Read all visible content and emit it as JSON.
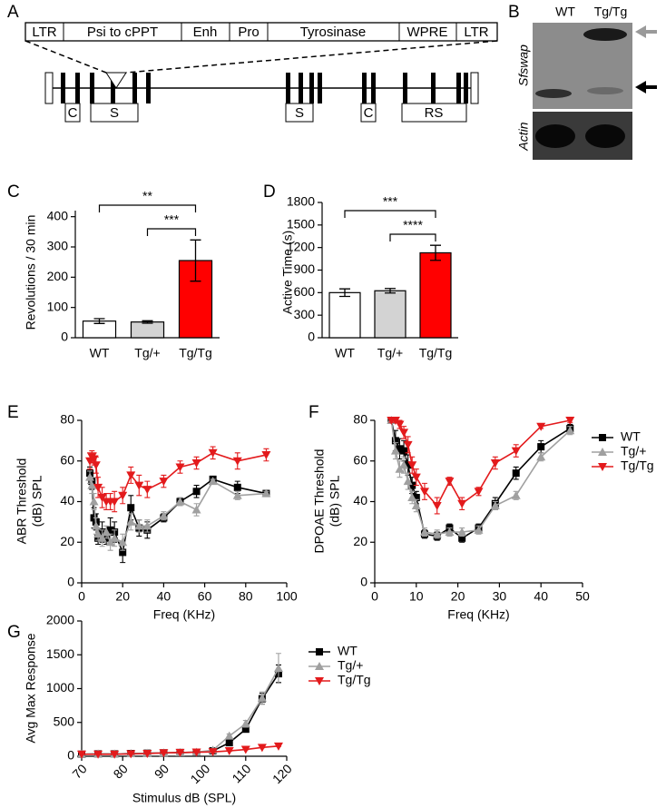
{
  "panel_a": {
    "label": "A",
    "construct": [
      "LTR",
      "Psi to cPPT",
      "Enh",
      "Pro",
      "Tyrosinase",
      "WPRE",
      "LTR"
    ],
    "domains": [
      "C",
      "S",
      "S",
      "C",
      "RS"
    ]
  },
  "panel_b": {
    "label": "B",
    "lanes": [
      "WT",
      "Tg/Tg"
    ],
    "rows": [
      "Sfswap",
      "Actin"
    ]
  },
  "chart_data": [
    {
      "type": "bar",
      "label": "C",
      "ylabel": "Revolutions / 30 min",
      "categories": [
        "WT",
        "Tg/+",
        "Tg/Tg"
      ],
      "values": [
        55,
        52,
        255
      ],
      "errors": [
        8,
        4,
        68
      ],
      "colors": [
        "#ffffff",
        "#d3d3d3",
        "#ff0000"
      ],
      "ylim": [
        0,
        420
      ],
      "yticks": [
        0,
        100,
        200,
        300,
        400
      ],
      "significance": [
        {
          "label": "**",
          "groups": [
            "WT",
            "Tg/Tg"
          ]
        },
        {
          "label": "***",
          "groups": [
            "Tg/+",
            "Tg/Tg"
          ]
        }
      ]
    },
    {
      "type": "bar",
      "label": "D",
      "ylabel": "Active Time  (s)",
      "categories": [
        "WT",
        "Tg/+",
        "Tg/Tg"
      ],
      "values": [
        600,
        625,
        1130
      ],
      "errors": [
        50,
        30,
        100
      ],
      "colors": [
        "#ffffff",
        "#d3d3d3",
        "#ff0000"
      ],
      "ylim": [
        0,
        1800
      ],
      "yticks": [
        0,
        300,
        600,
        900,
        1200,
        1500,
        1800
      ],
      "significance": [
        {
          "label": "***",
          "groups": [
            "WT",
            "Tg/Tg"
          ]
        },
        {
          "label": "****",
          "groups": [
            "Tg/+",
            "Tg/Tg"
          ]
        }
      ]
    },
    {
      "type": "line",
      "label": "E",
      "ylabel": [
        "ABR Threshold",
        "(dB) SPL"
      ],
      "xlabel": "Freq (KHz)",
      "x": [
        4,
        5,
        6,
        7,
        8,
        10,
        12,
        14,
        16,
        20,
        24,
        28,
        32,
        40,
        48,
        56,
        64,
        76,
        90
      ],
      "xlim": [
        0,
        100
      ],
      "xticks": [
        0,
        20,
        40,
        60,
        80,
        100
      ],
      "ylim": [
        0,
        80
      ],
      "yticks": [
        0,
        20,
        40,
        60,
        80
      ],
      "series": [
        {
          "name": "WT",
          "color": "#000000",
          "marker": "square",
          "values": [
            54,
            50,
            32,
            30,
            22,
            25,
            22,
            26,
            25,
            15,
            37,
            27,
            26,
            32,
            40,
            45,
            51,
            47,
            44
          ],
          "errors": [
            3,
            4,
            5,
            4,
            3,
            5,
            3,
            6,
            5,
            5,
            6,
            4,
            4,
            2,
            2,
            3,
            1,
            3,
            1
          ]
        },
        {
          "name": "Tg/+",
          "color": "#a0a0a0",
          "marker": "triangle-up",
          "values": [
            52,
            48,
            40,
            28,
            24,
            22,
            25,
            20,
            22,
            20,
            30,
            28,
            28,
            33,
            40,
            36,
            50,
            43,
            44
          ],
          "errors": [
            3,
            4,
            4,
            4,
            3,
            4,
            3,
            4,
            4,
            4,
            4,
            3,
            3,
            2,
            2,
            3,
            1,
            2,
            1
          ]
        },
        {
          "name": "Tg/Tg",
          "color": "#e31a1c",
          "marker": "triangle-down",
          "values": [
            60,
            62,
            61,
            58,
            47,
            42,
            40,
            40,
            40,
            43,
            53,
            48,
            46,
            50,
            57,
            59,
            64,
            60,
            63
          ],
          "errors": [
            4,
            3,
            3,
            4,
            5,
            5,
            4,
            4,
            5,
            4,
            4,
            5,
            4,
            3,
            3,
            3,
            3,
            4,
            3
          ]
        }
      ]
    },
    {
      "type": "line",
      "label": "F",
      "ylabel": [
        "DPOAE Threshold",
        "(dB) SPL"
      ],
      "xlabel": "Freq (KHz)",
      "legend": "outside-right",
      "x": [
        4,
        5,
        6,
        7,
        8,
        9,
        10,
        12,
        15,
        18,
        21,
        25,
        29,
        34,
        40,
        47
      ],
      "xlim": [
        0,
        50
      ],
      "xticks": [
        0,
        10,
        20,
        30,
        40,
        50
      ],
      "ylim": [
        0,
        80
      ],
      "yticks": [
        0,
        20,
        40,
        60,
        80
      ],
      "series": [
        {
          "name": "WT",
          "color": "#000000",
          "marker": "square",
          "values": [
            80,
            70,
            66,
            65,
            58,
            48,
            42,
            24,
            23,
            27,
            22,
            27,
            39,
            54,
            67,
            76
          ],
          "errors": [
            1,
            5,
            5,
            5,
            5,
            4,
            3,
            2,
            2,
            2,
            2,
            2,
            3,
            3,
            3,
            2
          ]
        },
        {
          "name": "Tg/+",
          "color": "#a0a0a0",
          "marker": "triangle-up",
          "values": [
            80,
            65,
            56,
            58,
            50,
            42,
            38,
            25,
            24,
            25,
            25,
            26,
            38,
            43,
            62,
            75
          ],
          "errors": [
            1,
            4,
            4,
            4,
            4,
            3,
            3,
            2,
            2,
            2,
            2,
            2,
            2,
            2,
            2,
            2
          ]
        },
        {
          "name": "Tg/Tg",
          "color": "#e31a1c",
          "marker": "triangle-down",
          "values": [
            80,
            80,
            78,
            74,
            68,
            58,
            52,
            45,
            38,
            50,
            39,
            45,
            59,
            65,
            77,
            80
          ],
          "errors": [
            1,
            1,
            2,
            3,
            4,
            4,
            4,
            4,
            4,
            2,
            3,
            2,
            3,
            3,
            1,
            1
          ]
        }
      ]
    },
    {
      "type": "line",
      "label": "G",
      "ylabel": "Avg Max Response",
      "xlabel": "Stimulus dB (SPL)",
      "legend": "outside-right",
      "x": [
        70,
        74,
        78,
        82,
        86,
        90,
        94,
        98,
        102,
        106,
        110,
        114,
        118
      ],
      "xlim": [
        70,
        120
      ],
      "xticks": [
        70,
        80,
        90,
        100,
        110,
        120
      ],
      "ylim": [
        0,
        2000
      ],
      "yticks": [
        0,
        500,
        1000,
        1500,
        2000
      ],
      "series": [
        {
          "name": "WT",
          "color": "#000000",
          "marker": "square",
          "values": [
            30,
            35,
            35,
            40,
            45,
            50,
            55,
            60,
            80,
            200,
            400,
            850,
            1220
          ],
          "errors": [
            5,
            5,
            5,
            5,
            5,
            5,
            5,
            5,
            10,
            20,
            40,
            80,
            130
          ]
        },
        {
          "name": "Tg/+",
          "color": "#a0a0a0",
          "marker": "triangle-up",
          "values": [
            30,
            35,
            35,
            40,
            45,
            50,
            55,
            60,
            90,
            300,
            480,
            860,
            1300
          ],
          "errors": [
            5,
            5,
            5,
            5,
            5,
            5,
            5,
            5,
            10,
            30,
            50,
            90,
            220
          ]
        },
        {
          "name": "Tg/Tg",
          "color": "#e31a1c",
          "marker": "triangle-down",
          "values": [
            30,
            30,
            30,
            35,
            40,
            50,
            55,
            60,
            65,
            80,
            100,
            130,
            150
          ],
          "errors": [
            3,
            3,
            3,
            3,
            3,
            3,
            3,
            3,
            5,
            5,
            5,
            5,
            5
          ]
        }
      ]
    }
  ]
}
